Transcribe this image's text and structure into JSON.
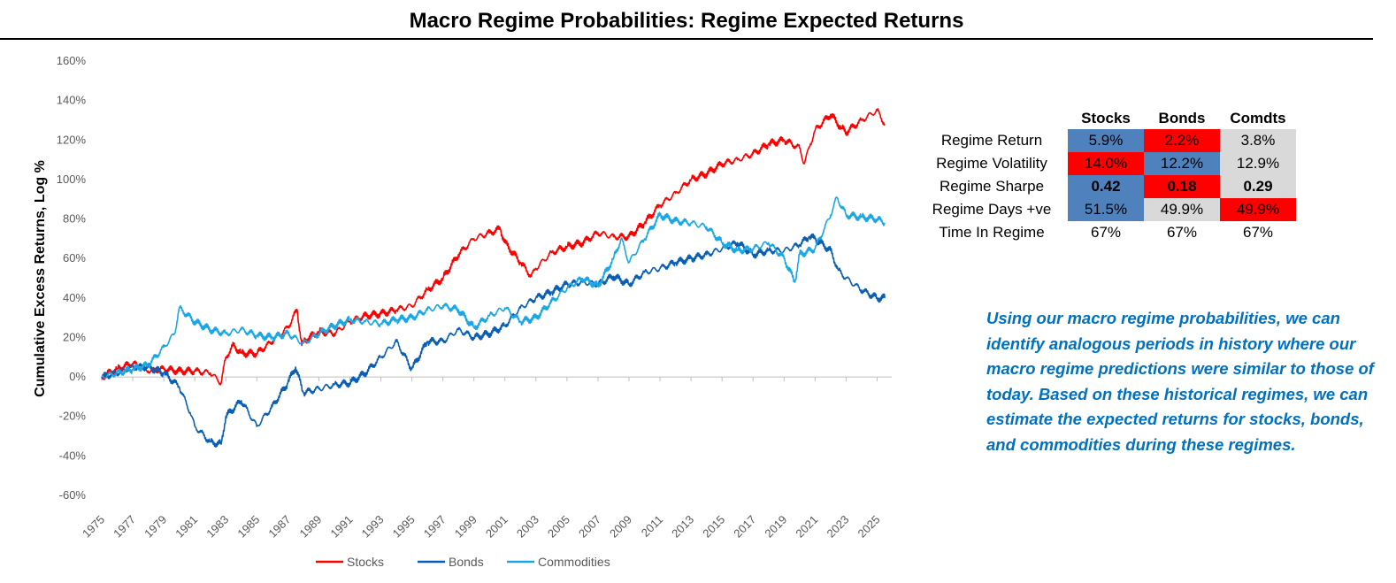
{
  "title": "Macro Regime Probabilities: Regime Expected Returns",
  "chart_data": {
    "type": "line",
    "title": "Macro Regime Probabilities: Regime Expected Returns",
    "xlabel": "",
    "ylabel": "Cumulative Excess Returns, Log %",
    "ylim": [
      -60,
      160
    ],
    "xlim": [
      1975,
      2025.6
    ],
    "y_ticks": [
      "-60%",
      "-40%",
      "-20%",
      "0%",
      "20%",
      "40%",
      "60%",
      "80%",
      "100%",
      "120%",
      "140%",
      "160%"
    ],
    "x_ticks": [
      "1975",
      "1977",
      "1979",
      "1981",
      "1983",
      "1985",
      "1987",
      "1989",
      "1991",
      "1993",
      "1995",
      "1997",
      "1999",
      "2001",
      "2003",
      "2005",
      "2007",
      "2009",
      "2011",
      "2013",
      "2015",
      "2017",
      "2019",
      "2021",
      "2023",
      "2025"
    ],
    "grid": false,
    "legend_position": "bottom",
    "series": [
      {
        "name": "Stocks",
        "color": "#ff0000",
        "points": [
          [
            1975,
            0
          ],
          [
            1976,
            4
          ],
          [
            1977,
            7
          ],
          [
            1978,
            3
          ],
          [
            1979,
            4
          ],
          [
            1980,
            3
          ],
          [
            1981,
            3
          ],
          [
            1982,
            2
          ],
          [
            1982.7,
            -3
          ],
          [
            1983,
            10
          ],
          [
            1983.5,
            16
          ],
          [
            1984,
            12
          ],
          [
            1985,
            12
          ],
          [
            1986,
            18
          ],
          [
            1987,
            25
          ],
          [
            1987.6,
            34
          ],
          [
            1987.9,
            16
          ],
          [
            1988,
            18
          ],
          [
            1989,
            23
          ],
          [
            1990,
            22
          ],
          [
            1991,
            28
          ],
          [
            1992,
            31
          ],
          [
            1993,
            32
          ],
          [
            1994,
            34
          ],
          [
            1995,
            36
          ],
          [
            1996,
            44
          ],
          [
            1997,
            50
          ],
          [
            1998,
            62
          ],
          [
            1999,
            70
          ],
          [
            2000,
            73
          ],
          [
            2000.7,
            75
          ],
          [
            2001,
            68
          ],
          [
            2002,
            58
          ],
          [
            2002.7,
            51
          ],
          [
            2003,
            55
          ],
          [
            2004,
            63
          ],
          [
            2005,
            66
          ],
          [
            2006,
            68
          ],
          [
            2007,
            73
          ],
          [
            2008,
            71
          ],
          [
            2009,
            71
          ],
          [
            2010,
            78
          ],
          [
            2011,
            87
          ],
          [
            2012,
            93
          ],
          [
            2013,
            100
          ],
          [
            2014,
            103
          ],
          [
            2015,
            108
          ],
          [
            2016,
            110
          ],
          [
            2017,
            113
          ],
          [
            2018,
            118
          ],
          [
            2019,
            120
          ],
          [
            2020,
            116
          ],
          [
            2020.3,
            108
          ],
          [
            2020.7,
            118
          ],
          [
            2021,
            125
          ],
          [
            2022,
            133
          ],
          [
            2022.7,
            126
          ],
          [
            2023,
            124
          ],
          [
            2024,
            130
          ],
          [
            2025,
            135
          ],
          [
            2025.5,
            128
          ]
        ]
      },
      {
        "name": "Bonds",
        "color": "#0b5fb2",
        "points": [
          [
            1975,
            0
          ],
          [
            1976,
            2
          ],
          [
            1977,
            5
          ],
          [
            1978,
            5
          ],
          [
            1979,
            2
          ],
          [
            1980,
            -5
          ],
          [
            1980.7,
            -18
          ],
          [
            1981,
            -25
          ],
          [
            1982,
            -33
          ],
          [
            1982.7,
            -34
          ],
          [
            1983,
            -20
          ],
          [
            1984,
            -12
          ],
          [
            1985,
            -25
          ],
          [
            1986,
            -15
          ],
          [
            1987,
            -3
          ],
          [
            1987.5,
            5
          ],
          [
            1988,
            -8
          ],
          [
            1989,
            -6
          ],
          [
            1990,
            -4
          ],
          [
            1991,
            -3
          ],
          [
            1992,
            2
          ],
          [
            1993,
            10
          ],
          [
            1994,
            18
          ],
          [
            1995,
            4
          ],
          [
            1996,
            18
          ],
          [
            1997,
            18
          ],
          [
            1998,
            24
          ],
          [
            1999,
            20
          ],
          [
            2000,
            22
          ],
          [
            2001,
            26
          ],
          [
            2002,
            35
          ],
          [
            2003,
            40
          ],
          [
            2004,
            43
          ],
          [
            2005,
            47
          ],
          [
            2006,
            48
          ],
          [
            2007,
            47
          ],
          [
            2008,
            51
          ],
          [
            2009,
            47
          ],
          [
            2010,
            53
          ],
          [
            2011,
            55
          ],
          [
            2012,
            58
          ],
          [
            2013,
            60
          ],
          [
            2014,
            62
          ],
          [
            2015,
            65
          ],
          [
            2016,
            68
          ],
          [
            2017,
            62
          ],
          [
            2018,
            64
          ],
          [
            2019,
            64
          ],
          [
            2020,
            67
          ],
          [
            2020.6,
            71
          ],
          [
            2021,
            70
          ],
          [
            2022,
            64
          ],
          [
            2022.5,
            54
          ],
          [
            2023,
            50
          ],
          [
            2024,
            44
          ],
          [
            2025,
            40
          ],
          [
            2025.5,
            40
          ]
        ]
      },
      {
        "name": "Commodities",
        "color": "#1ba7e6",
        "points": [
          [
            1975,
            0
          ],
          [
            1976,
            2
          ],
          [
            1977,
            4
          ],
          [
            1978,
            6
          ],
          [
            1979,
            15
          ],
          [
            1979.7,
            22
          ],
          [
            1980,
            35
          ],
          [
            1981,
            28
          ],
          [
            1982,
            24
          ],
          [
            1983,
            22
          ],
          [
            1984,
            24
          ],
          [
            1985,
            21
          ],
          [
            1986,
            20
          ],
          [
            1987,
            22
          ],
          [
            1988,
            17
          ],
          [
            1989,
            22
          ],
          [
            1990,
            26
          ],
          [
            1991,
            29
          ],
          [
            1992,
            28
          ],
          [
            1993,
            27
          ],
          [
            1994,
            29
          ],
          [
            1995,
            30
          ],
          [
            1996,
            34
          ],
          [
            1997,
            36
          ],
          [
            1998,
            34
          ],
          [
            1999,
            25
          ],
          [
            2000,
            31
          ],
          [
            2001,
            35
          ],
          [
            2002,
            28
          ],
          [
            2003,
            30
          ],
          [
            2004,
            38
          ],
          [
            2005,
            45
          ],
          [
            2006,
            50
          ],
          [
            2007,
            46
          ],
          [
            2008,
            60
          ],
          [
            2008.5,
            70
          ],
          [
            2009,
            58
          ],
          [
            2010,
            70
          ],
          [
            2011,
            82
          ],
          [
            2012,
            79
          ],
          [
            2013,
            78
          ],
          [
            2014,
            76
          ],
          [
            2015,
            68
          ],
          [
            2016,
            64
          ],
          [
            2017,
            65
          ],
          [
            2018,
            68
          ],
          [
            2019,
            60
          ],
          [
            2019.7,
            48
          ],
          [
            2020,
            62
          ],
          [
            2021,
            65
          ],
          [
            2022,
            82
          ],
          [
            2022.4,
            91
          ],
          [
            2023,
            82
          ],
          [
            2024,
            81
          ],
          [
            2025,
            80
          ],
          [
            2025.5,
            78
          ]
        ]
      }
    ]
  },
  "stats_table": {
    "headers": [
      "Stocks",
      "Bonds",
      "Comdts"
    ],
    "rows": [
      {
        "label": "Regime Return",
        "cells": [
          {
            "value": "5.9%",
            "bg": "#4f81bd",
            "bold": false
          },
          {
            "value": "2.2%",
            "bg": "#ff0000",
            "bold": false
          },
          {
            "value": "3.8%",
            "bg": "#d9d9d9",
            "bold": false
          }
        ]
      },
      {
        "label": "Regime Volatility",
        "cells": [
          {
            "value": "14.0%",
            "bg": "#ff0000",
            "bold": false
          },
          {
            "value": "12.2%",
            "bg": "#4f81bd",
            "bold": false
          },
          {
            "value": "12.9%",
            "bg": "#d9d9d9",
            "bold": false
          }
        ]
      },
      {
        "label": "Regime Sharpe",
        "cells": [
          {
            "value": "0.42",
            "bg": "#4f81bd",
            "bold": true
          },
          {
            "value": "0.18",
            "bg": "#ff0000",
            "bold": true
          },
          {
            "value": "0.29",
            "bg": "#d9d9d9",
            "bold": true
          }
        ]
      },
      {
        "label": "Regime Days +ve",
        "cells": [
          {
            "value": "51.5%",
            "bg": "#4f81bd",
            "bold": false
          },
          {
            "value": "49.9%",
            "bg": "#d9d9d9",
            "bold": false
          },
          {
            "value": "49.9%",
            "bg": "#ff0000",
            "bold": false
          }
        ]
      },
      {
        "label": "Time In Regime",
        "cells": [
          {
            "value": "67%",
            "bg": "#ffffff",
            "bold": false
          },
          {
            "value": "67%",
            "bg": "#ffffff",
            "bold": false
          },
          {
            "value": "67%",
            "bg": "#ffffff",
            "bold": false
          }
        ]
      }
    ]
  },
  "note": "Using our macro regime probabilities, we can identify analogous periods in history where our macro regime predictions were similar to those of today. Based on these historical regimes, we can estimate the expected returns for stocks, bonds, and commodities during these regimes."
}
